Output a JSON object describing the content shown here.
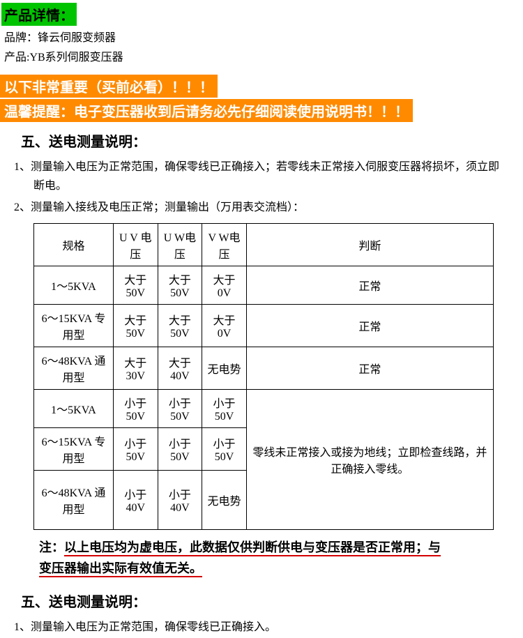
{
  "header": {
    "title": "产品详情："
  },
  "meta": {
    "brand_label": "品牌：锋云伺服变频器",
    "product_label": "产品:YB系列伺服变压器"
  },
  "warn": {
    "line1": "以下非常重要（买前必看）！！！",
    "line2": "温馨提醒：电子变压器收到后请务必先仔细阅读使用说明书！！！"
  },
  "section5": {
    "title": "五、送电测量说明：",
    "item1": "1、测量输入电压为正常范围，确保零线已正确接入；若零线未正常接入伺服变压器将损坏，须立即断电。",
    "item2": "2、测量输入接线及电压正常；测量输出（万用表交流档）："
  },
  "table": {
    "cols": [
      "规格",
      "U V 电压",
      "U W电压",
      "V W电压",
      "判断"
    ],
    "rows": [
      [
        "1～5KVA",
        "大于 50V",
        "大于 50V",
        "大于 0V",
        "正常"
      ],
      [
        "6～15KVA 专用型",
        "大于 50V",
        "大于 50V",
        "大于 0V",
        "正常"
      ],
      [
        "6～48KVA 通用型",
        "大于 30V",
        "大于 40V",
        "无电势",
        "正常"
      ],
      [
        "1～5KVA",
        "小于 50V",
        "小于 50V",
        "小于 50V",
        ""
      ],
      [
        "6～15KVA 专用型",
        "小于 50V",
        "小于 50V",
        "小于 50V",
        ""
      ],
      [
        "6～48KVA 通用型",
        "小于 40V",
        "小于 40V",
        "无电势",
        ""
      ]
    ],
    "merged_judgment": "零线未正常接入或接为地线；立即检查线路，并正确接入零线。"
  },
  "note": {
    "prefix": "注：",
    "seg1": "以上电压均为虚电压，此数据仅供判断供电与变压器是否正常用；与",
    "seg2": "变压器输出实际有效值无关。"
  },
  "section5b": {
    "title": "五、送电测量说明：",
    "item1": "1、测量输入电压为正常范围，确保零线已正确接入。"
  }
}
